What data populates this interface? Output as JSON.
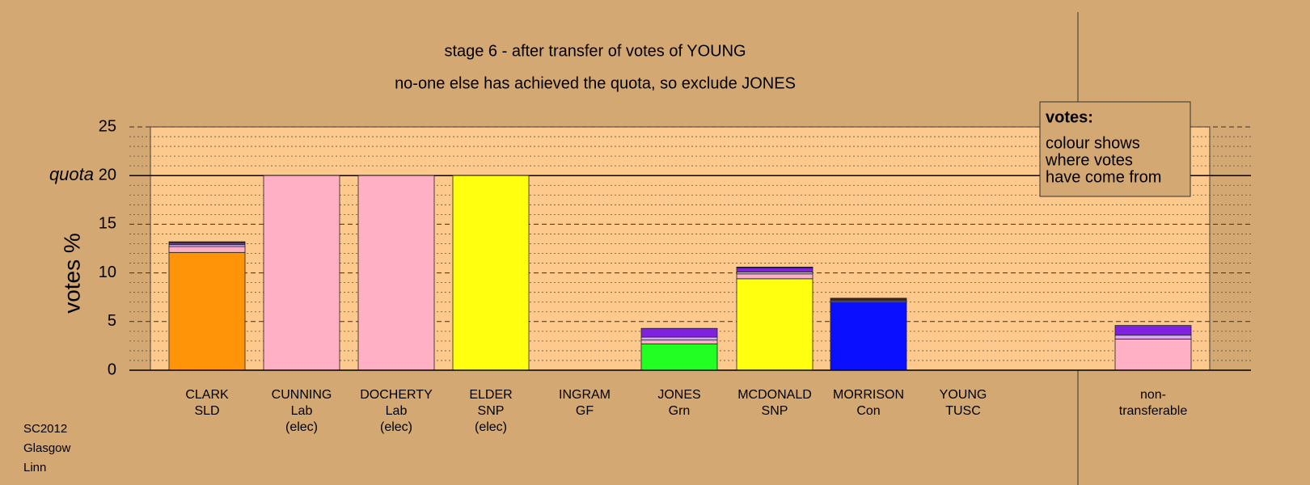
{
  "chart_data": {
    "type": "stacked_bar",
    "title": "stage 6 - after transfer of votes of YOUNG",
    "subtitle": "no-one else has achieved the quota, so exclude JONES",
    "y_label": "votes %",
    "quota": 20,
    "quota_label": "quota",
    "categories": [
      [
        "CLARK",
        "SLD"
      ],
      [
        "CUNNING",
        "Lab",
        "(elec)"
      ],
      [
        "DOCHERTY",
        "Lab",
        "(elec)"
      ],
      [
        "ELDER",
        "SNP",
        "(elec)"
      ],
      [
        "INGRAM",
        "GF"
      ],
      [
        "JONES",
        "Grn"
      ],
      [
        "MCDONALD",
        "SNP"
      ],
      [
        "MORRISON",
        "Con"
      ],
      [
        "YOUNG",
        "TUSC"
      ],
      [
        "non-",
        "transferable"
      ]
    ],
    "series": [
      {
        "color": "#ff9408",
        "values": [
          12.1,
          0,
          0,
          0,
          0,
          0,
          0,
          0,
          0,
          0
        ]
      },
      {
        "color": "#22ff22",
        "values": [
          0,
          0,
          0,
          0,
          0,
          2.7,
          0,
          0,
          0,
          0
        ]
      },
      {
        "color": "#ffff10",
        "values": [
          0,
          0,
          0,
          20,
          0,
          0,
          9.4,
          0,
          0,
          0
        ]
      },
      {
        "color": "#0a10ff",
        "values": [
          0,
          0,
          0,
          0,
          0,
          0,
          0,
          7.0,
          0,
          0
        ]
      },
      {
        "color": "#ffb0c4",
        "values": [
          0.6,
          20,
          20,
          0,
          0,
          0.4,
          0.5,
          0.1,
          0,
          3.2
        ]
      },
      {
        "color": "#d8a8f0",
        "values": [
          0.2,
          0,
          0,
          0,
          0,
          0.3,
          0.2,
          0.1,
          0,
          0.4
        ]
      },
      {
        "color": "#8020e0",
        "values": [
          0.2,
          0,
          0,
          0,
          0,
          0.9,
          0.4,
          0,
          0,
          1.0
        ]
      },
      {
        "color": "#402018",
        "values": [
          0.1,
          0,
          0,
          0,
          0,
          0,
          0.1,
          0.2,
          0,
          0
        ]
      }
    ],
    "ylim": [
      0,
      25
    ],
    "yticks": [
      0,
      5,
      10,
      15,
      20,
      25
    ],
    "minor_yticks": [
      1,
      2,
      3,
      4,
      6,
      7,
      8,
      9,
      11,
      12,
      13,
      14,
      16,
      17,
      18,
      19,
      21,
      22,
      23,
      24
    ],
    "grid": true,
    "legend_box": {
      "title": "votes:",
      "lines": [
        "colour shows",
        "where votes",
        "have come from"
      ]
    },
    "footer": [
      "SC2012",
      "Glasgow",
      "Linn"
    ]
  }
}
